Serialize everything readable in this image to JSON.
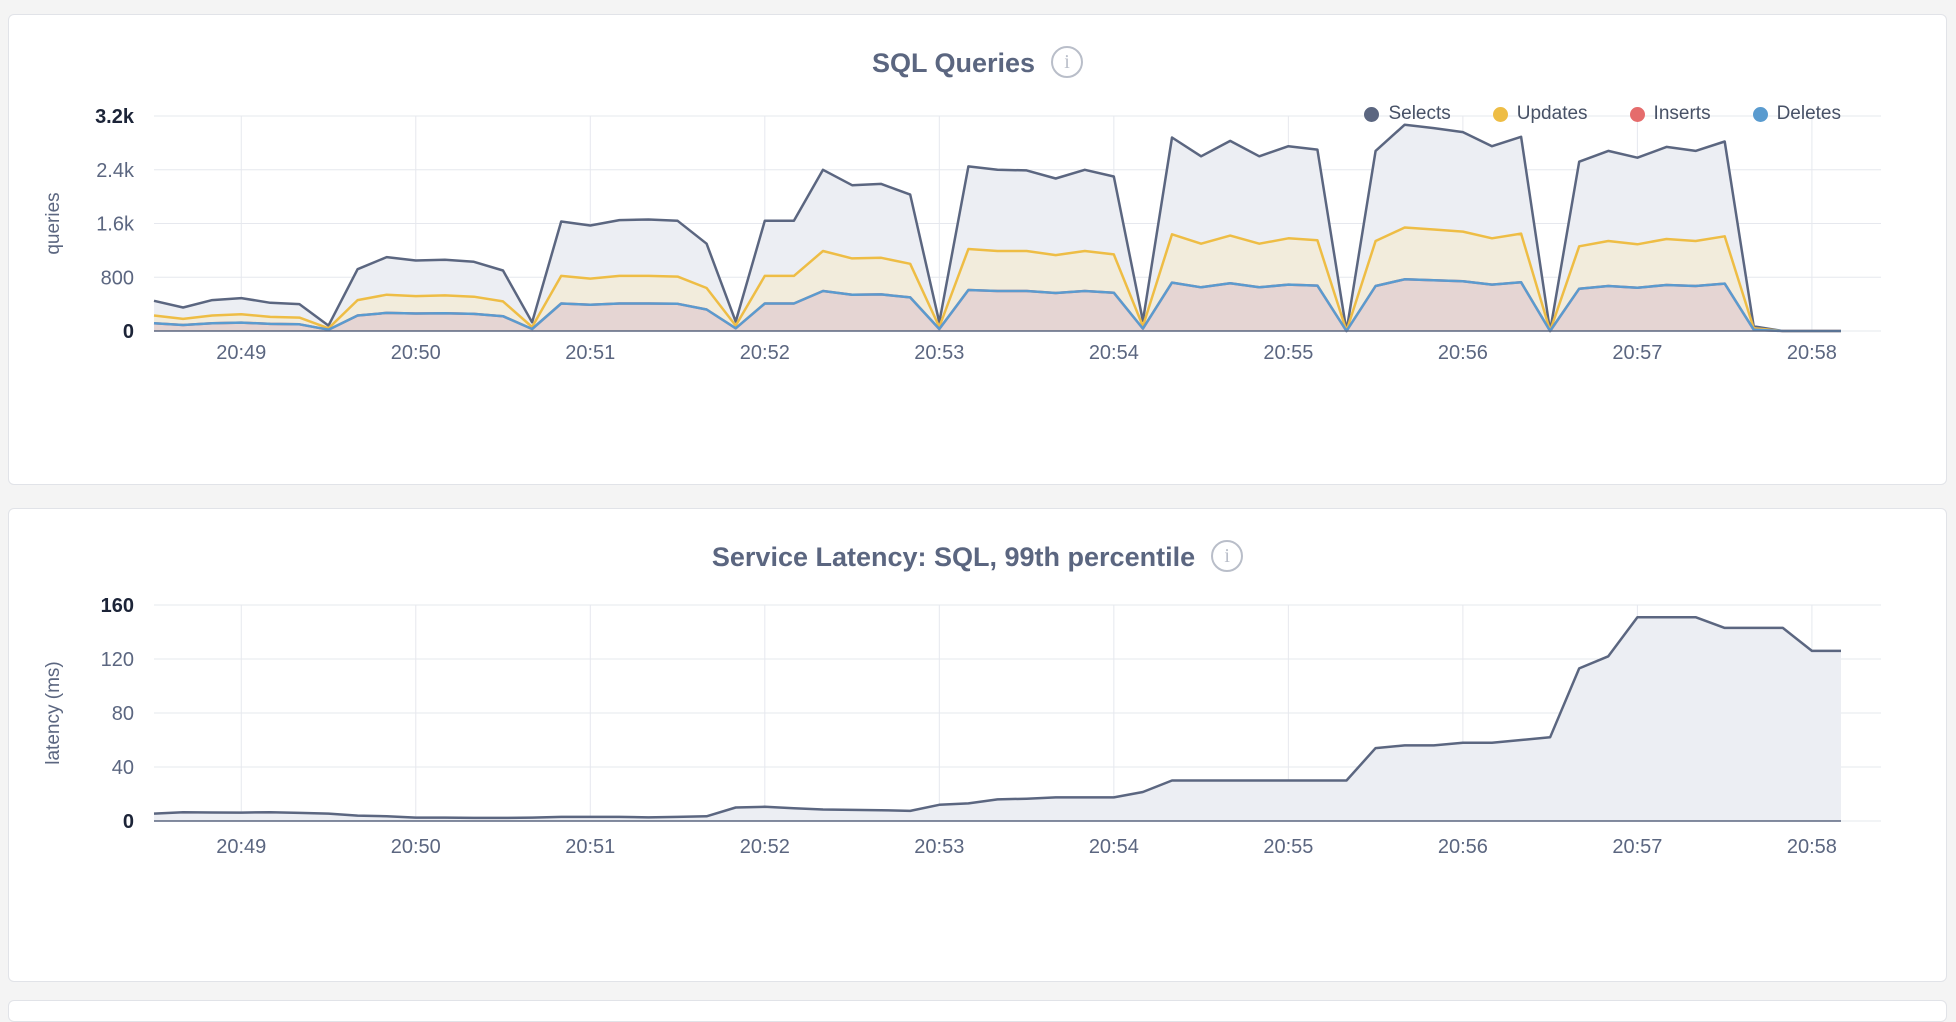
{
  "chart_data": [
    {
      "type": "area",
      "title": "SQL Queries",
      "ylabel": "queries",
      "xlabel": "",
      "ylim": [
        0,
        3200
      ],
      "x_ticks": [
        "20:49",
        "20:50",
        "20:51",
        "20:52",
        "20:53",
        "20:54",
        "20:55",
        "20:56",
        "20:57",
        "20:58"
      ],
      "x_range": [
        "20:48:30",
        "20:58:10"
      ],
      "y_ticks": [
        "0",
        "800",
        "1.6k",
        "2.4k",
        "3.2k"
      ],
      "y_tick_values": [
        0,
        800,
        1600,
        2400,
        3200
      ],
      "legend_position": "top-right",
      "series": [
        {
          "name": "Selects",
          "color": "#5b6680",
          "fill": "#eceef3",
          "values": [
            450,
            350,
            460,
            490,
            420,
            400,
            80,
            920,
            1100,
            1050,
            1060,
            1030,
            900,
            130,
            1630,
            1570,
            1650,
            1660,
            1640,
            1300,
            140,
            1640,
            1640,
            2400,
            2170,
            2190,
            2030,
            130,
            2450,
            2400,
            2390,
            2270,
            2400,
            2300,
            150,
            2880,
            2600,
            2830,
            2600,
            2750,
            2700,
            0,
            2680,
            3070,
            3020,
            2960,
            2750,
            2890,
            0,
            2520,
            2680,
            2580,
            2740,
            2680,
            2820,
            70,
            0,
            0,
            0
          ]
        },
        {
          "name": "Updates",
          "color": "#eebd45",
          "fill": "#f2ecdc",
          "values": [
            230,
            180,
            230,
            250,
            210,
            200,
            40,
            460,
            540,
            520,
            530,
            510,
            440,
            60,
            820,
            780,
            820,
            820,
            810,
            640,
            80,
            820,
            820,
            1190,
            1080,
            1090,
            1000,
            60,
            1220,
            1190,
            1190,
            1130,
            1190,
            1140,
            70,
            1440,
            1300,
            1420,
            1300,
            1380,
            1350,
            0,
            1340,
            1540,
            1510,
            1480,
            1380,
            1450,
            0,
            1260,
            1340,
            1290,
            1370,
            1340,
            1410,
            40,
            0,
            0,
            0
          ]
        },
        {
          "name": "Inserts",
          "color": "#e56c6c",
          "fill": "#e5d5d3",
          "values": [
            115,
            90,
            115,
            125,
            105,
            100,
            20,
            230,
            270,
            260,
            265,
            255,
            220,
            30,
            410,
            390,
            410,
            410,
            405,
            320,
            40,
            410,
            410,
            595,
            540,
            545,
            500,
            30,
            610,
            595,
            595,
            565,
            595,
            570,
            35,
            720,
            650,
            710,
            650,
            690,
            675,
            0,
            670,
            770,
            755,
            740,
            690,
            725,
            0,
            630,
            670,
            645,
            685,
            670,
            705,
            20,
            0,
            0,
            0
          ]
        },
        {
          "name": "Deletes",
          "color": "#5a9bcf",
          "fill": "#e5d5d3",
          "values": [
            115,
            90,
            115,
            125,
            105,
            100,
            20,
            230,
            270,
            260,
            265,
            255,
            220,
            30,
            410,
            390,
            410,
            410,
            405,
            320,
            40,
            410,
            410,
            595,
            540,
            545,
            500,
            30,
            610,
            595,
            595,
            565,
            595,
            570,
            35,
            720,
            650,
            710,
            650,
            690,
            675,
            0,
            670,
            770,
            755,
            740,
            690,
            725,
            0,
            630,
            670,
            645,
            685,
            670,
            705,
            20,
            0,
            0,
            0
          ]
        }
      ]
    },
    {
      "type": "area",
      "title": "Service Latency: SQL, 99th percentile",
      "ylabel": "latency (ms)",
      "xlabel": "",
      "ylim": [
        0,
        160
      ],
      "x_ticks": [
        "20:49",
        "20:50",
        "20:51",
        "20:52",
        "20:53",
        "20:54",
        "20:55",
        "20:56",
        "20:57",
        "20:58"
      ],
      "x_range": [
        "20:48:30",
        "20:58:10"
      ],
      "y_ticks": [
        "0",
        "40",
        "80",
        "120",
        "160"
      ],
      "y_tick_values": [
        0,
        40,
        80,
        120,
        160
      ],
      "series": [
        {
          "name": "latency",
          "color": "#5b6680",
          "fill": "#eceef3",
          "values": [
            5.5,
            6.5,
            6.3,
            6.2,
            6.5,
            6.0,
            5.5,
            4.0,
            3.5,
            2.5,
            2.5,
            2.3,
            2.3,
            2.5,
            3.0,
            3.0,
            3.0,
            2.7,
            3.0,
            3.5,
            10,
            10.5,
            9.5,
            8.5,
            8.2,
            8.0,
            7.5,
            12,
            13,
            16,
            16.5,
            17.5,
            17.5,
            17.5,
            21.5,
            30,
            30,
            30,
            30,
            30,
            30,
            30,
            54,
            56,
            56,
            58,
            58,
            60,
            62,
            113,
            122,
            151,
            151,
            151,
            143,
            143,
            143,
            126,
            126
          ]
        }
      ]
    }
  ]
}
